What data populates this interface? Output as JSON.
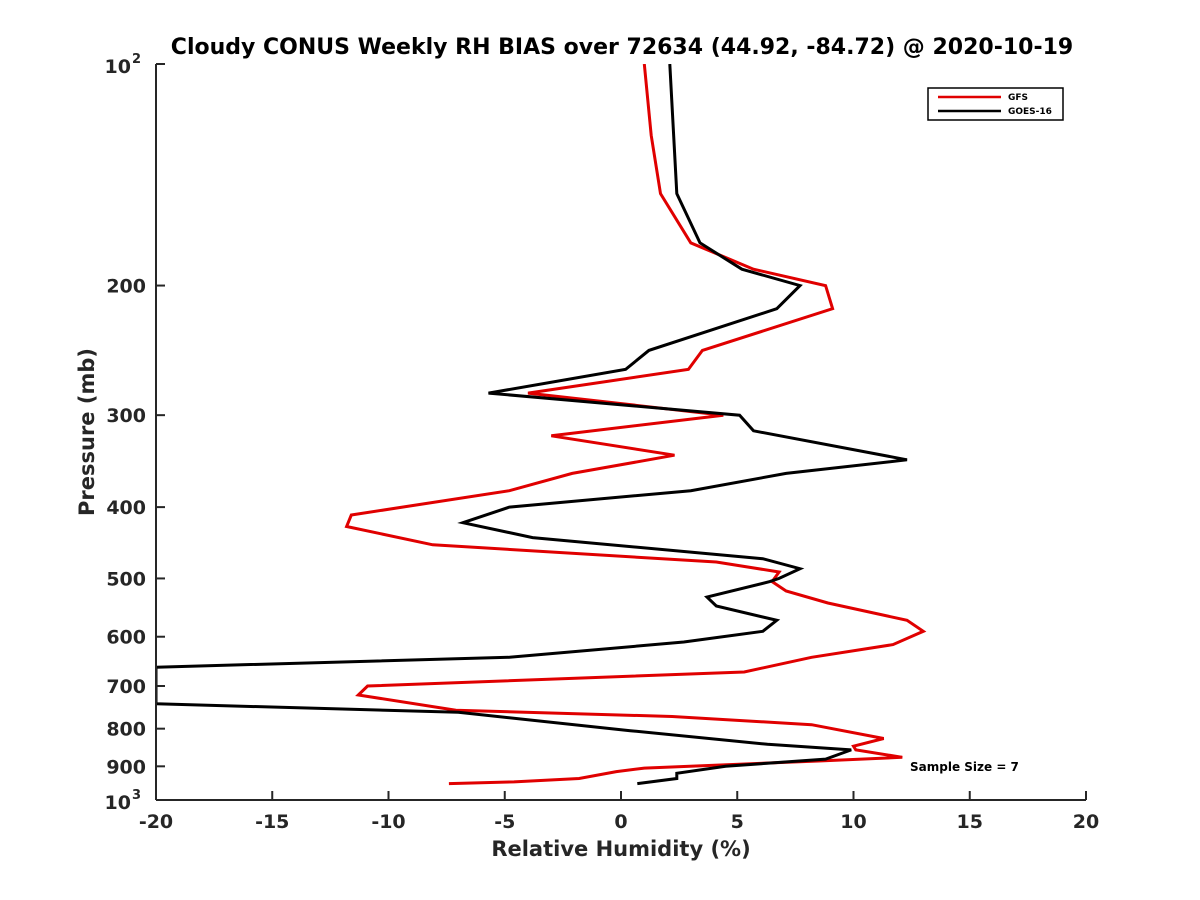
{
  "chart_data": {
    "type": "line",
    "title": "Cloudy CONUS Weekly RH BIAS over 72634 (44.92, -84.72) @ 2020-10-19",
    "xlabel": "Relative Humidity (%)",
    "ylabel": "Pressure (mb)",
    "xlim": [
      -20,
      20
    ],
    "ylim": [
      100,
      1000
    ],
    "y_scale": "log",
    "y_reversed": true,
    "grid": false,
    "legend_position": "top-right",
    "annotation": "Sample Size = 7",
    "x_ticks": [
      "-20",
      "-15",
      "-10",
      "-5",
      "0",
      "5",
      "10",
      "15",
      "20"
    ],
    "x_tick_values": [
      -20,
      -15,
      -10,
      -5,
      0,
      5,
      10,
      15,
      20
    ],
    "y_ticks": [
      {
        "value": 100,
        "base": "10",
        "exp": "2"
      },
      {
        "value": 200,
        "label": "200"
      },
      {
        "value": 300,
        "label": "300"
      },
      {
        "value": 400,
        "label": "400"
      },
      {
        "value": 500,
        "label": "500"
      },
      {
        "value": 600,
        "label": "600"
      },
      {
        "value": 700,
        "label": "700"
      },
      {
        "value": 800,
        "label": "800"
      },
      {
        "value": 900,
        "label": "900"
      },
      {
        "value": 1000,
        "base": "10",
        "exp": "3"
      }
    ],
    "series": [
      {
        "name": "GFS",
        "color": "#e00000",
        "points": [
          [
            1.0,
            100
          ],
          [
            1.3,
            125
          ],
          [
            1.7,
            150
          ],
          [
            3.0,
            175
          ],
          [
            5.7,
            190
          ],
          [
            8.8,
            200
          ],
          [
            9.1,
            215
          ],
          [
            3.5,
            245
          ],
          [
            2.9,
            260
          ],
          [
            -4.0,
            280
          ],
          [
            4.4,
            300
          ],
          [
            -3.0,
            320
          ],
          [
            2.3,
            340
          ],
          [
            -2.1,
            360
          ],
          [
            -4.8,
            380
          ],
          [
            -11.6,
            410
          ],
          [
            -11.8,
            425
          ],
          [
            -8.1,
            450
          ],
          [
            4.1,
            475
          ],
          [
            6.8,
            490
          ],
          [
            6.5,
            505
          ],
          [
            7.1,
            520
          ],
          [
            8.9,
            540
          ],
          [
            12.3,
            570
          ],
          [
            13.0,
            590
          ],
          [
            11.7,
            615
          ],
          [
            8.2,
            640
          ],
          [
            5.3,
            670
          ],
          [
            -10.9,
            700
          ],
          [
            -11.3,
            720
          ],
          [
            -7.1,
            755
          ],
          [
            2.2,
            770
          ],
          [
            8.2,
            790
          ],
          [
            11.3,
            825
          ],
          [
            10.0,
            845
          ],
          [
            10.1,
            855
          ],
          [
            12.1,
            875
          ],
          [
            8.5,
            885
          ],
          [
            1.0,
            905
          ],
          [
            -0.2,
            915
          ],
          [
            -1.8,
            935
          ],
          [
            -4.6,
            945
          ],
          [
            -7.4,
            950
          ]
        ]
      },
      {
        "name": "GOES-16",
        "color": "#000000",
        "points": [
          [
            2.1,
            100
          ],
          [
            2.4,
            150
          ],
          [
            3.4,
            175
          ],
          [
            5.2,
            190
          ],
          [
            7.7,
            200
          ],
          [
            6.7,
            215
          ],
          [
            1.2,
            245
          ],
          [
            0.2,
            260
          ],
          [
            -5.7,
            280
          ],
          [
            5.1,
            300
          ],
          [
            5.7,
            315
          ],
          [
            12.3,
            345
          ],
          [
            7.1,
            360
          ],
          [
            3.0,
            380
          ],
          [
            -4.8,
            400
          ],
          [
            -6.8,
            420
          ],
          [
            -3.8,
            440
          ],
          [
            6.1,
            470
          ],
          [
            7.7,
            485
          ],
          [
            6.8,
            500
          ],
          [
            6.4,
            505
          ],
          [
            3.7,
            530
          ],
          [
            4.1,
            545
          ],
          [
            6.7,
            570
          ],
          [
            6.1,
            590
          ],
          [
            2.7,
            610
          ],
          [
            -4.8,
            640
          ],
          [
            -20.0,
            660
          ],
          [
            -20.0,
            740
          ],
          [
            -7.0,
            760
          ],
          [
            0.4,
            805
          ],
          [
            6.3,
            840
          ],
          [
            9.9,
            855
          ],
          [
            8.8,
            880
          ],
          [
            4.5,
            900
          ],
          [
            2.4,
            920
          ],
          [
            2.4,
            935
          ],
          [
            0.7,
            950
          ]
        ]
      }
    ]
  }
}
